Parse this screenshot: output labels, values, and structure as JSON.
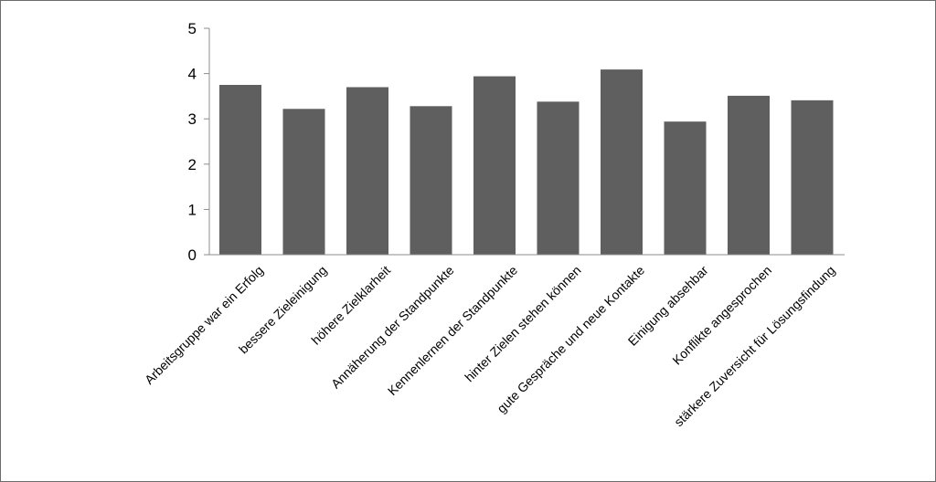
{
  "chart_data": {
    "type": "bar",
    "categories": [
      "Arbeitsgruppe war ein Erfolg",
      "bessere Zieleinigung",
      "höhere Zielklarheit",
      "Annäherung der  Standpunkte",
      "Kennenlernen der Standpunkte",
      "hinter Zielen stehen können",
      "gute Gespräche und neue Kontakte",
      "Einigung absehbar",
      "Konflikte angesprochen",
      "stärkere Zuversicht für Lösungsfindung"
    ],
    "values": [
      3.75,
      3.22,
      3.7,
      3.28,
      3.94,
      3.38,
      4.09,
      2.94,
      3.51,
      3.41
    ],
    "title": "",
    "xlabel": "",
    "ylabel": "",
    "ylim": [
      0,
      5
    ],
    "yticks": [
      "0",
      "1",
      "2",
      "3",
      "4",
      "5"
    ],
    "grid": false,
    "legend": "none",
    "colors": {
      "bar": "#5f5f5f",
      "axis": "#8c8c8c",
      "frame": "#6b6b6b"
    }
  }
}
